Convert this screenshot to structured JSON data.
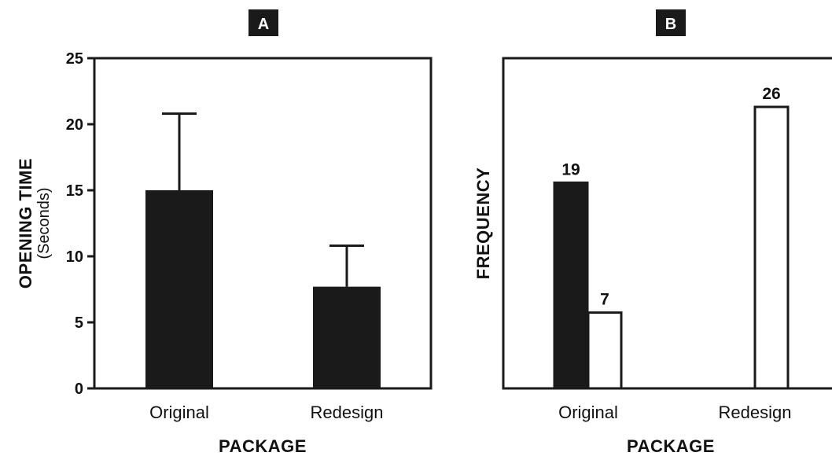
{
  "chart_data": [
    {
      "panel": "A",
      "type": "bar",
      "ylabel": "OPENING TIME",
      "ylabel_sub": "(Seconds)",
      "xlabel": "PACKAGE",
      "categories": [
        "Original",
        "Redesign"
      ],
      "values": [
        15,
        7.7
      ],
      "error_upper": [
        20.8,
        10.8
      ],
      "ylim": [
        0,
        25
      ],
      "yticks": [
        0,
        5,
        10,
        15,
        20,
        25
      ],
      "bar_color": "#1a1a1a",
      "grid": false
    },
    {
      "panel": "B",
      "type": "bar",
      "ylabel": "FREQUENCY",
      "xlabel": "PACKAGE",
      "categories": [
        "Original",
        "Redesign"
      ],
      "ylim": [
        0,
        30.5
      ],
      "series": [
        {
          "fill": "#1a1a1a",
          "values": [
            19,
            null
          ]
        },
        {
          "fill": "#ffffff",
          "values": [
            7,
            26
          ]
        }
      ],
      "grid": false
    }
  ]
}
